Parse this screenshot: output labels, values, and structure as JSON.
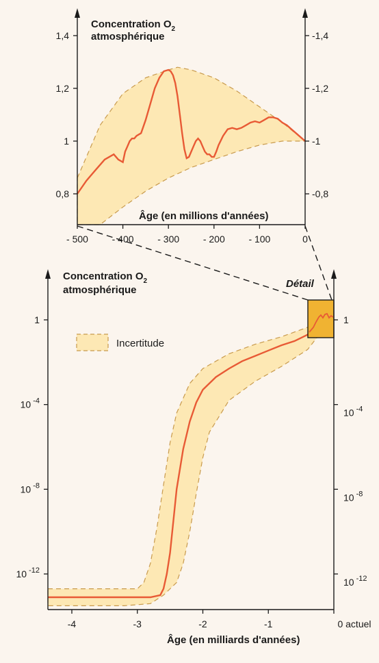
{
  "chart_data": [
    {
      "type": "line",
      "name": "detail",
      "title_line1": "Concentration O",
      "title_sub": "2",
      "title_line2": "atmosphérique",
      "xlabel": "Âge (en millions d'années)",
      "xlim": [
        -500,
        0
      ],
      "ylim": [
        0.7,
        1.5
      ],
      "x_ticks": [
        -500,
        -400,
        -300,
        -200,
        -100,
        0
      ],
      "x_tick_labels": [
        "- 500",
        "- 400",
        "- 300",
        "- 200",
        "- 100",
        "0"
      ],
      "y_ticks": [
        0.8,
        1.0,
        1.2,
        1.4
      ],
      "y_tick_labels_left": [
        "0,8",
        "1",
        "1,2",
        "1,4"
      ],
      "y_tick_labels_right": [
        "0,8",
        "1",
        "1,2",
        "1,4"
      ],
      "series": [
        {
          "values_x": [
            -500,
            -480,
            -460,
            -440,
            -420,
            -410,
            -400,
            -395,
            -390,
            -385,
            -380,
            -375,
            -370,
            -360,
            -350,
            -340,
            -330,
            -320,
            -310,
            -300,
            -295,
            -290,
            -285,
            -280,
            -275,
            -270,
            -265,
            -260,
            -255,
            -250,
            -245,
            -240,
            -235,
            -230,
            -225,
            -220,
            -215,
            -210,
            -205,
            -200,
            -195,
            -190,
            -180,
            -170,
            -160,
            -150,
            -140,
            -130,
            -120,
            -110,
            -100,
            -90,
            -80,
            -70,
            -60,
            -50,
            -40,
            -30,
            -20,
            -10,
            0
          ],
          "values_y": [
            0.8,
            0.85,
            0.89,
            0.93,
            0.95,
            0.93,
            0.92,
            0.96,
            0.98,
            1.0,
            1.01,
            1.01,
            1.02,
            1.03,
            1.08,
            1.14,
            1.2,
            1.24,
            1.265,
            1.27,
            1.265,
            1.25,
            1.22,
            1.17,
            1.1,
            1.03,
            0.97,
            0.935,
            0.94,
            0.96,
            0.98,
            1.0,
            1.01,
            1.0,
            0.98,
            0.96,
            0.95,
            0.95,
            0.94,
            0.94,
            0.96,
            0.985,
            1.02,
            1.045,
            1.05,
            1.045,
            1.05,
            1.06,
            1.07,
            1.075,
            1.07,
            1.08,
            1.09,
            1.09,
            1.085,
            1.07,
            1.06,
            1.045,
            1.03,
            1.015,
            1.0
          ]
        }
      ],
      "band_upper_x": [
        -500,
        -450,
        -400,
        -350,
        -300,
        -280,
        -250,
        -200,
        -150,
        -100,
        -50,
        0
      ],
      "band_upper_y": [
        0.86,
        1.06,
        1.18,
        1.24,
        1.27,
        1.28,
        1.27,
        1.24,
        1.19,
        1.13,
        1.07,
        1.0
      ],
      "band_lower_x": [
        -500,
        -450,
        -400,
        -350,
        -300,
        -250,
        -200,
        -150,
        -100,
        -50,
        0
      ],
      "band_lower_y": [
        0.62,
        0.68,
        0.75,
        0.81,
        0.86,
        0.9,
        0.93,
        0.96,
        0.985,
        1.0,
        1.0
      ]
    },
    {
      "type": "line",
      "name": "main",
      "title_line1": "Concentration O",
      "title_sub": "2",
      "title_line2": "atmosphérique",
      "xlabel": "Âge (en milliards d'années)",
      "xlim": [
        -4.4,
        0
      ],
      "ylim_log10": [
        -14,
        1
      ],
      "x_ticks": [
        -4,
        -3,
        -2,
        -1,
        0
      ],
      "x_tick_labels": [
        "-4",
        "-3",
        "-2",
        "-1",
        "0 actuel"
      ],
      "y_ticks_log10": [
        0,
        -4,
        -8,
        -12
      ],
      "y_tick_labels_left": [
        {
          "base": "1",
          "exp": ""
        },
        {
          "base": "10",
          "exp": "-4"
        },
        {
          "base": "10",
          "exp": "-8"
        },
        {
          "base": "10",
          "exp": "-12"
        }
      ],
      "y_tick_labels_right": [
        {
          "base": "1",
          "exp": ""
        },
        {
          "base": "10",
          "exp": "-4"
        },
        {
          "base": "10",
          "exp": "-8"
        },
        {
          "base": "10",
          "exp": "-12"
        }
      ],
      "series": [
        {
          "values_x": [
            -4.4,
            -4.0,
            -3.5,
            -3.0,
            -2.8,
            -2.65,
            -2.6,
            -2.55,
            -2.5,
            -2.45,
            -2.4,
            -2.3,
            -2.2,
            -2.1,
            -2.0,
            -1.8,
            -1.6,
            -1.4,
            -1.2,
            -1.0,
            -0.8,
            -0.6,
            -0.4,
            -0.3,
            -0.2,
            -0.1,
            0.0
          ],
          "values_y_log10": [
            -13.1,
            -13.1,
            -13.1,
            -13.1,
            -13.1,
            -13.0,
            -12.7,
            -12.0,
            -11.0,
            -9.5,
            -8.0,
            -6.1,
            -4.8,
            -3.9,
            -3.3,
            -2.7,
            -2.3,
            -1.95,
            -1.7,
            -1.45,
            -1.2,
            -1.0,
            -0.7,
            -0.2,
            0.15,
            0.05,
            0.0
          ]
        }
      ],
      "band_upper_x": [
        -4.4,
        -3.0,
        -2.9,
        -2.8,
        -2.7,
        -2.6,
        -2.5,
        -2.4,
        -2.2,
        -2.0,
        -1.6,
        -1.2,
        -0.8,
        -0.4,
        -0.2,
        0.0
      ],
      "band_upper_y_log10": [
        -12.7,
        -12.7,
        -12.4,
        -11.5,
        -9.8,
        -7.8,
        -5.8,
        -4.4,
        -3.0,
        -2.3,
        -1.6,
        -1.15,
        -0.8,
        -0.35,
        -0.1,
        0.0
      ],
      "band_lower_x": [
        -4.4,
        -3.2,
        -2.8,
        -2.6,
        -2.4,
        -2.3,
        -2.2,
        -2.1,
        -2.0,
        -1.9,
        -1.6,
        -1.2,
        -0.8,
        -0.4,
        -0.2,
        0.0
      ],
      "band_lower_y_log10": [
        -13.5,
        -13.5,
        -13.4,
        -13.0,
        -12.4,
        -11.5,
        -10.0,
        -8.2,
        -6.5,
        -5.3,
        -3.8,
        -2.9,
        -2.2,
        -1.4,
        -0.6,
        0.0
      ],
      "legend": {
        "label": "Incertitude",
        "placement": "top-left"
      },
      "detail_label": "Détail"
    }
  ],
  "colors": {
    "band_fill": "#fde8b4",
    "band_stroke": "#c89a4c",
    "curve": "#e85a35",
    "axis": "#1a1a1a",
    "detail_box": "#f0b332",
    "background": "#fbf5ee"
  }
}
